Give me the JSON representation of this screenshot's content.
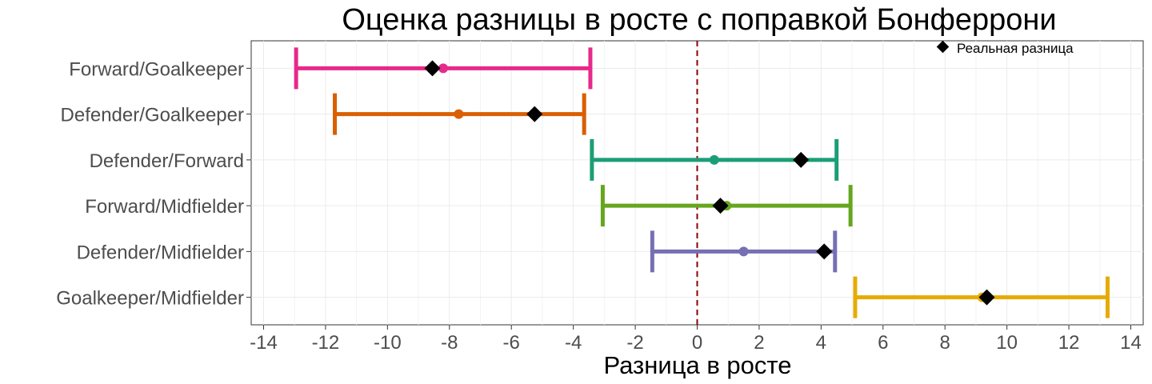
{
  "chart_data": {
    "type": "errorbar",
    "title": "Оценка разницы в росте с поправкой Бонферрони",
    "xlabel": "Разница в росте",
    "ylabel": "",
    "xlim": [
      -14.4,
      14.4
    ],
    "xticks": [
      -14,
      -12,
      -10,
      -8,
      -6,
      -4,
      -2,
      0,
      2,
      4,
      6,
      8,
      10,
      12,
      14
    ],
    "reference_line": 0,
    "grid": true,
    "legend": {
      "position": "top-right",
      "entries": [
        "Реальная разница"
      ]
    },
    "categories": [
      "Forward/Goalkeeper",
      "Defender/Goalkeeper",
      "Defender/Forward",
      "Forward/Midfielder",
      "Defender/Midfielder",
      "Goalkeeper/Midfielder"
    ],
    "series": [
      {
        "estimate": -8.2,
        "lower": -12.95,
        "upper": -3.45,
        "actual": -8.55,
        "color": "#E7298A"
      },
      {
        "estimate": -7.7,
        "lower": -11.7,
        "upper": -3.65,
        "actual": -5.25,
        "color": "#D95F02"
      },
      {
        "estimate": 0.55,
        "lower": -3.4,
        "upper": 4.5,
        "actual": 3.35,
        "color": "#1B9E77"
      },
      {
        "estimate": 0.95,
        "lower": -3.05,
        "upper": 4.95,
        "actual": 0.75,
        "color": "#66A61E"
      },
      {
        "estimate": 1.5,
        "lower": -1.45,
        "upper": 4.45,
        "actual": 4.1,
        "color": "#7570B3"
      },
      {
        "estimate": 9.2,
        "lower": 5.1,
        "upper": 13.25,
        "actual": 9.35,
        "color": "#E6AB02"
      }
    ]
  }
}
